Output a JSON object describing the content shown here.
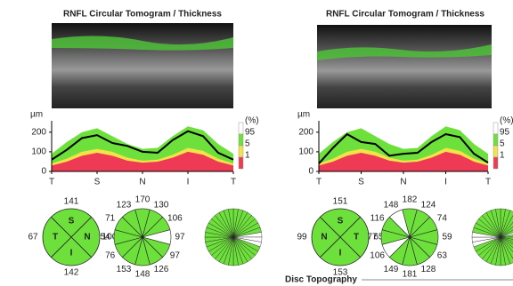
{
  "panels": [
    {
      "title": "RNFL Circular Tomogram / Thickness",
      "thickness": {
        "y_label": "µm",
        "ylim": [
          0,
          240
        ],
        "yticks": [
          0,
          100,
          200
        ],
        "xlim": [
          0,
          360
        ],
        "xticks": [
          {
            "value": 0,
            "label": "T"
          },
          {
            "value": 90,
            "label": "S"
          },
          {
            "value": 180,
            "label": "N"
          },
          {
            "value": 270,
            "label": "I"
          },
          {
            "value": 360,
            "label": "T"
          }
        ],
        "x": [
          0,
          30,
          60,
          90,
          120,
          150,
          180,
          210,
          240,
          270,
          300,
          330,
          360
        ],
        "band_95": [
          90,
          150,
          200,
          220,
          180,
          140,
          115,
          120,
          180,
          230,
          210,
          140,
          90
        ],
        "band_5": [
          40,
          65,
          100,
          115,
          100,
          70,
          55,
          60,
          85,
          120,
          105,
          65,
          40
        ],
        "band_1": [
          30,
          50,
          80,
          95,
          80,
          55,
          45,
          50,
          70,
          100,
          85,
          50,
          30
        ],
        "line": [
          60,
          110,
          170,
          185,
          145,
          130,
          100,
          95,
          160,
          205,
          180,
          95,
          60
        ],
        "legend": [
          "(%)",
          "95",
          "5",
          "1"
        ]
      },
      "quadrants": [
        {
          "label": "S",
          "value": 141
        },
        {
          "label": "N",
          "value": 100
        },
        {
          "label": "I",
          "value": 142
        },
        {
          "label": "T",
          "value": 67
        }
      ],
      "clock": [
        170,
        130,
        106,
        97,
        97,
        126,
        148,
        153,
        76,
        54,
        71,
        123
      ],
      "clock_colors": [
        "#6ee03c",
        "#6ee03c",
        "#6ee03c",
        "#ffffff",
        "#6ee03c",
        "#6ee03c",
        "#6ee03c",
        "#6ee03c",
        "#6ee03c",
        "#6ee03c",
        "#6ee03c",
        "#6ee03c"
      ],
      "sector_colors": [
        "#6ee03c",
        "#6ee03c",
        "#6ee03c",
        "#6ee03c",
        "#6ee03c",
        "#6ee03c",
        "#6ee03c",
        "#6ee03c",
        "#ffffff",
        "#ffffff",
        "#ffffff",
        "#6ee03c",
        "#6ee03c",
        "#6ee03c",
        "#6ee03c",
        "#6ee03c",
        "#6ee03c",
        "#6ee03c",
        "#6ee03c",
        "#6ee03c",
        "#6ee03c",
        "#6ee03c",
        "#6ee03c",
        "#6ee03c",
        "#6ee03c",
        "#6ee03c",
        "#6ee03c",
        "#6ee03c",
        "#6ee03c",
        "#6ee03c",
        "#6ee03c",
        "#6ee03c",
        "#6ee03c",
        "#6ee03c",
        "#6ee03c",
        "#6ee03c"
      ]
    },
    {
      "title": "RNFL Circular Tomogram / Thickness",
      "thickness": {
        "y_label": "µm",
        "ylim": [
          0,
          240
        ],
        "yticks": [
          0,
          100,
          200
        ],
        "xlim": [
          0,
          360
        ],
        "xticks": [
          {
            "value": 0,
            "label": "T"
          },
          {
            "value": 90,
            "label": "S"
          },
          {
            "value": 180,
            "label": "N"
          },
          {
            "value": 270,
            "label": "I"
          },
          {
            "value": 360,
            "label": "T"
          }
        ],
        "x": [
          0,
          30,
          60,
          90,
          120,
          150,
          180,
          210,
          240,
          270,
          300,
          330,
          360
        ],
        "band_95": [
          90,
          150,
          200,
          220,
          180,
          140,
          115,
          120,
          180,
          230,
          210,
          140,
          90
        ],
        "band_5": [
          40,
          65,
          100,
          115,
          100,
          70,
          55,
          60,
          85,
          120,
          105,
          65,
          40
        ],
        "band_1": [
          30,
          50,
          80,
          95,
          80,
          55,
          45,
          50,
          70,
          100,
          85,
          50,
          30
        ],
        "line": [
          40,
          120,
          190,
          150,
          140,
          80,
          90,
          95,
          150,
          190,
          175,
          90,
          45
        ],
        "legend": [
          "(%)",
          "95",
          "5",
          "1"
        ]
      },
      "quadrants": [
        {
          "label": "S",
          "value": 151
        },
        {
          "label": "T",
          "value": 65
        },
        {
          "label": "I",
          "value": 153
        },
        {
          "label": "N",
          "value": 99
        }
      ],
      "clock": [
        182,
        124,
        74,
        59,
        63,
        128,
        181,
        149,
        106,
        77,
        116,
        148
      ],
      "clock_colors": [
        "#6ee03c",
        "#6ee03c",
        "#6ee03c",
        "#6ee03c",
        "#6ee03c",
        "#6ee03c",
        "#6ee03c",
        "#6ee03c",
        "#ffffff",
        "#6ee03c",
        "#6ee03c",
        "#ffffff"
      ],
      "sector_colors": [
        "#6ee03c",
        "#6ee03c",
        "#6ee03c",
        "#6ee03c",
        "#6ee03c",
        "#6ee03c",
        "#6ee03c",
        "#ffffff",
        "#6ee03c",
        "#6ee03c",
        "#6ee03c",
        "#6ee03c",
        "#6ee03c",
        "#6ee03c",
        "#6ee03c",
        "#6ee03c",
        "#6ee03c",
        "#6ee03c",
        "#6ee03c",
        "#6ee03c",
        "#6ee03c",
        "#6ee03c",
        "#6ee03c",
        "#6ee03c",
        "#6ee03c",
        "#ffffff",
        "#ffffff",
        "#ffffff",
        "#6ee03c",
        "#6ee03c",
        "#6ee03c",
        "#6ee03c",
        "#6ee03c",
        "#6ee03c",
        "#6ee03c",
        "#6ee03c"
      ]
    }
  ],
  "footer": "Disc Topography"
}
